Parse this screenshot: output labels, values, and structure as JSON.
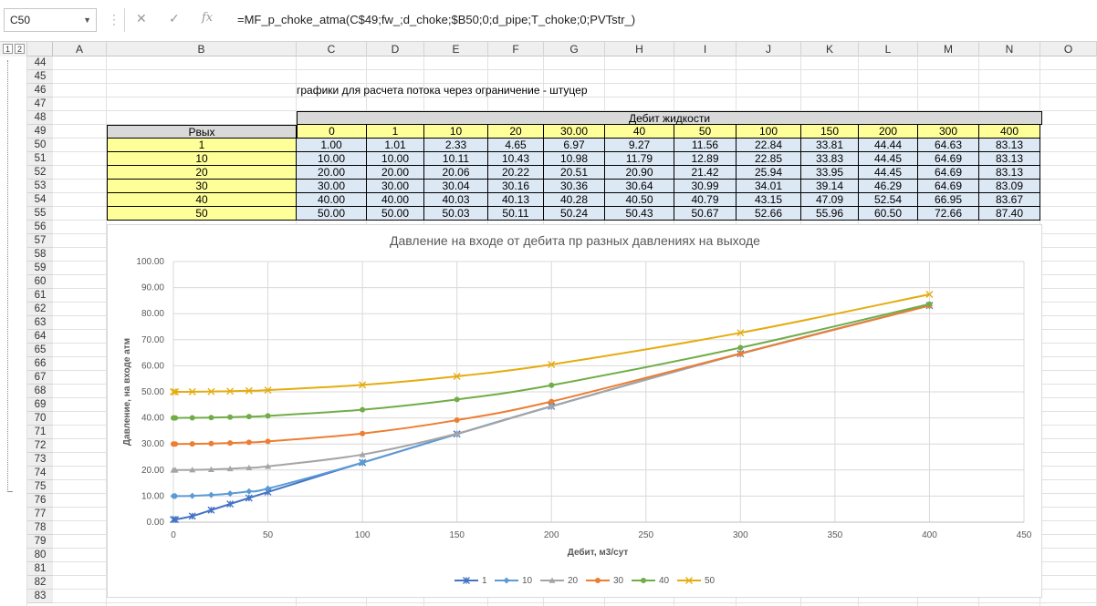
{
  "formula_bar": {
    "name_box": "C50",
    "fx_label": "fx",
    "formula": "=MF_p_choke_atma(C$49;fw_;d_choke;$B50;0;d_pipe;T_choke;0;PVTstr_)"
  },
  "outline_levels": [
    "1",
    "2"
  ],
  "columns": [
    "A",
    "B",
    "C",
    "D",
    "E",
    "F",
    "G",
    "H",
    "I",
    "J",
    "K",
    "L",
    "M",
    "N",
    "O"
  ],
  "rows": [
    "44",
    "45",
    "46",
    "47",
    "48",
    "49",
    "50",
    "51",
    "52",
    "53",
    "54",
    "55",
    "56",
    "57",
    "58",
    "59",
    "60",
    "61",
    "62",
    "63",
    "64",
    "65",
    "66",
    "67",
    "68",
    "69",
    "70",
    "71",
    "72",
    "73",
    "74",
    "75",
    "76",
    "77",
    "78",
    "79",
    "80",
    "81",
    "82",
    "83"
  ],
  "sheet": {
    "caption": "графики для расчета потока через ограничение - штуцер",
    "merged_header": "Дебит жидкости",
    "row_header_label": "Рвых",
    "rate_headers": [
      "0",
      "1",
      "10",
      "20",
      "30.00",
      "40",
      "50",
      "100",
      "150",
      "200",
      "300",
      "400"
    ],
    "table": [
      {
        "p": "1",
        "v": [
          "1.00",
          "1.01",
          "2.33",
          "4.65",
          "6.97",
          "9.27",
          "11.56",
          "22.84",
          "33.81",
          "44.44",
          "64.63",
          "83.13"
        ]
      },
      {
        "p": "10",
        "v": [
          "10.00",
          "10.00",
          "10.11",
          "10.43",
          "10.98",
          "11.79",
          "12.89",
          "22.85",
          "33.83",
          "44.45",
          "64.69",
          "83.13"
        ]
      },
      {
        "p": "20",
        "v": [
          "20.00",
          "20.00",
          "20.06",
          "20.22",
          "20.51",
          "20.90",
          "21.42",
          "25.94",
          "33.95",
          "44.45",
          "64.69",
          "83.13"
        ]
      },
      {
        "p": "30",
        "v": [
          "30.00",
          "30.00",
          "30.04",
          "30.16",
          "30.36",
          "30.64",
          "30.99",
          "34.01",
          "39.14",
          "46.29",
          "64.69",
          "83.09"
        ]
      },
      {
        "p": "40",
        "v": [
          "40.00",
          "40.00",
          "40.03",
          "40.13",
          "40.28",
          "40.50",
          "40.79",
          "43.15",
          "47.09",
          "52.54",
          "66.95",
          "83.67"
        ]
      },
      {
        "p": "50",
        "v": [
          "50.00",
          "50.00",
          "50.03",
          "50.11",
          "50.24",
          "50.43",
          "50.67",
          "52.66",
          "55.96",
          "60.50",
          "72.66",
          "87.40"
        ]
      }
    ]
  },
  "chart_data": {
    "type": "scatter",
    "title": "Давление на входе от дебита пр разных давлениях на выходе",
    "xlabel": "Дебит, м3/сут",
    "ylabel": "Давление, на входе атм",
    "xlim": [
      0,
      450
    ],
    "ylim": [
      0,
      100
    ],
    "xticks": [
      "0",
      "50",
      "100",
      "150",
      "200",
      "250",
      "300",
      "350",
      "400",
      "450"
    ],
    "yticks": [
      "0.00",
      "10.00",
      "20.00",
      "30.00",
      "40.00",
      "50.00",
      "60.00",
      "70.00",
      "80.00",
      "90.00",
      "100.00"
    ],
    "grid": true,
    "legend_position": "bottom",
    "x": [
      0,
      1,
      10,
      20,
      30,
      40,
      50,
      100,
      150,
      200,
      300,
      400
    ],
    "series": [
      {
        "name": "1",
        "color": "#4472c4",
        "marker": "star",
        "values": [
          1.0,
          1.01,
          2.33,
          4.65,
          6.97,
          9.27,
          11.56,
          22.84,
          33.81,
          44.44,
          64.63,
          83.13
        ]
      },
      {
        "name": "10",
        "color": "#5b9bd5",
        "marker": "diamond",
        "values": [
          10.0,
          10.0,
          10.11,
          10.43,
          10.98,
          11.79,
          12.89,
          22.85,
          33.83,
          44.45,
          64.69,
          83.13
        ]
      },
      {
        "name": "20",
        "color": "#a5a5a5",
        "marker": "triangle",
        "values": [
          20.0,
          20.0,
          20.06,
          20.22,
          20.51,
          20.9,
          21.42,
          25.94,
          33.95,
          44.45,
          64.69,
          83.13
        ]
      },
      {
        "name": "30",
        "color": "#ed7d31",
        "marker": "circle",
        "values": [
          30.0,
          30.0,
          30.04,
          30.16,
          30.36,
          30.64,
          30.99,
          34.01,
          39.14,
          46.29,
          64.69,
          83.09
        ]
      },
      {
        "name": "40",
        "color": "#70ad47",
        "marker": "circle",
        "values": [
          40.0,
          40.0,
          40.03,
          40.13,
          40.28,
          40.5,
          40.79,
          43.15,
          47.09,
          52.54,
          66.95,
          83.67
        ]
      },
      {
        "name": "50",
        "color": "#e5ac0f",
        "marker": "x",
        "values": [
          50.0,
          50.0,
          50.03,
          50.11,
          50.24,
          50.43,
          50.67,
          52.66,
          55.96,
          60.5,
          72.66,
          87.4
        ]
      }
    ]
  }
}
